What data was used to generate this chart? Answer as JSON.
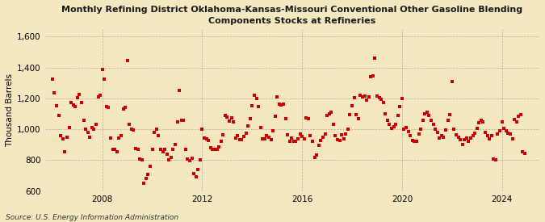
{
  "title": "Monthly Refining District Oklahoma-Kansas-Missouri Conventional Other Gasoline Blending\nComponents Stocks at Refineries",
  "ylabel": "Thousand Barrels",
  "source": "Source: U.S. Energy Information Administration",
  "background_color": "#f5e8c0",
  "plot_bg_color": "#f5e8c0",
  "marker_color": "#cc0000",
  "grid_color": "#b0a898",
  "xlim_start": 2005.7,
  "xlim_end": 2025.5,
  "ylim": [
    600,
    1650
  ],
  "yticks": [
    600,
    800,
    1000,
    1200,
    1400,
    1600
  ],
  "ytick_labels": [
    "600",
    "800",
    "1,000",
    "1,200",
    "1,400",
    "1,600"
  ],
  "xticks": [
    2008,
    2012,
    2016,
    2020,
    2024
  ],
  "data": [
    [
      2006.0,
      1325
    ],
    [
      2006.083,
      1235
    ],
    [
      2006.167,
      1155
    ],
    [
      2006.25,
      1090
    ],
    [
      2006.333,
      960
    ],
    [
      2006.417,
      940
    ],
    [
      2006.5,
      855
    ],
    [
      2006.583,
      950
    ],
    [
      2006.667,
      1010
    ],
    [
      2006.75,
      1175
    ],
    [
      2006.833,
      1160
    ],
    [
      2006.917,
      1150
    ],
    [
      2007.0,
      1205
    ],
    [
      2007.083,
      1225
    ],
    [
      2007.167,
      1175
    ],
    [
      2007.25,
      1060
    ],
    [
      2007.333,
      1000
    ],
    [
      2007.417,
      980
    ],
    [
      2007.5,
      950
    ],
    [
      2007.583,
      1010
    ],
    [
      2007.667,
      1000
    ],
    [
      2007.75,
      1030
    ],
    [
      2007.833,
      1210
    ],
    [
      2007.917,
      1220
    ],
    [
      2008.0,
      1390
    ],
    [
      2008.083,
      1325
    ],
    [
      2008.167,
      1145
    ],
    [
      2008.25,
      1140
    ],
    [
      2008.333,
      945
    ],
    [
      2008.417,
      870
    ],
    [
      2008.5,
      870
    ],
    [
      2008.583,
      855
    ],
    [
      2008.667,
      945
    ],
    [
      2008.75,
      960
    ],
    [
      2008.833,
      1130
    ],
    [
      2008.917,
      1140
    ],
    [
      2009.0,
      1445
    ],
    [
      2009.083,
      1035
    ],
    [
      2009.167,
      1000
    ],
    [
      2009.25,
      995
    ],
    [
      2009.333,
      875
    ],
    [
      2009.417,
      870
    ],
    [
      2009.5,
      805
    ],
    [
      2009.583,
      800
    ],
    [
      2009.667,
      650
    ],
    [
      2009.75,
      680
    ],
    [
      2009.833,
      710
    ],
    [
      2009.917,
      760
    ],
    [
      2010.0,
      870
    ],
    [
      2010.083,
      980
    ],
    [
      2010.167,
      1000
    ],
    [
      2010.25,
      960
    ],
    [
      2010.333,
      870
    ],
    [
      2010.417,
      855
    ],
    [
      2010.5,
      870
    ],
    [
      2010.583,
      840
    ],
    [
      2010.667,
      800
    ],
    [
      2010.75,
      820
    ],
    [
      2010.833,
      870
    ],
    [
      2010.917,
      900
    ],
    [
      2011.0,
      1050
    ],
    [
      2011.083,
      1250
    ],
    [
      2011.167,
      1060
    ],
    [
      2011.25,
      1060
    ],
    [
      2011.333,
      870
    ],
    [
      2011.417,
      810
    ],
    [
      2011.5,
      795
    ],
    [
      2011.583,
      815
    ],
    [
      2011.667,
      715
    ],
    [
      2011.75,
      690
    ],
    [
      2011.833,
      740
    ],
    [
      2011.917,
      800
    ],
    [
      2012.0,
      1000
    ],
    [
      2012.083,
      945
    ],
    [
      2012.167,
      940
    ],
    [
      2012.25,
      930
    ],
    [
      2012.333,
      880
    ],
    [
      2012.417,
      870
    ],
    [
      2012.5,
      870
    ],
    [
      2012.583,
      870
    ],
    [
      2012.667,
      885
    ],
    [
      2012.75,
      920
    ],
    [
      2012.833,
      965
    ],
    [
      2012.917,
      1090
    ],
    [
      2013.0,
      1080
    ],
    [
      2013.083,
      1055
    ],
    [
      2013.167,
      1075
    ],
    [
      2013.25,
      1050
    ],
    [
      2013.333,
      945
    ],
    [
      2013.417,
      960
    ],
    [
      2013.5,
      935
    ],
    [
      2013.583,
      935
    ],
    [
      2013.667,
      955
    ],
    [
      2013.75,
      975
    ],
    [
      2013.833,
      1020
    ],
    [
      2013.917,
      1070
    ],
    [
      2014.0,
      1155
    ],
    [
      2014.083,
      1220
    ],
    [
      2014.167,
      1200
    ],
    [
      2014.25,
      1150
    ],
    [
      2014.333,
      1010
    ],
    [
      2014.417,
      940
    ],
    [
      2014.5,
      940
    ],
    [
      2014.583,
      960
    ],
    [
      2014.667,
      950
    ],
    [
      2014.75,
      935
    ],
    [
      2014.833,
      990
    ],
    [
      2014.917,
      1085
    ],
    [
      2015.0,
      1210
    ],
    [
      2015.083,
      1165
    ],
    [
      2015.167,
      1160
    ],
    [
      2015.25,
      1165
    ],
    [
      2015.333,
      1070
    ],
    [
      2015.417,
      965
    ],
    [
      2015.5,
      920
    ],
    [
      2015.583,
      945
    ],
    [
      2015.667,
      920
    ],
    [
      2015.75,
      920
    ],
    [
      2015.833,
      940
    ],
    [
      2015.917,
      970
    ],
    [
      2016.0,
      955
    ],
    [
      2016.083,
      940
    ],
    [
      2016.167,
      1075
    ],
    [
      2016.25,
      1070
    ],
    [
      2016.333,
      960
    ],
    [
      2016.417,
      925
    ],
    [
      2016.5,
      820
    ],
    [
      2016.583,
      835
    ],
    [
      2016.667,
      895
    ],
    [
      2016.75,
      930
    ],
    [
      2016.833,
      950
    ],
    [
      2016.917,
      970
    ],
    [
      2017.0,
      1090
    ],
    [
      2017.083,
      1100
    ],
    [
      2017.167,
      1110
    ],
    [
      2017.25,
      1030
    ],
    [
      2017.333,
      960
    ],
    [
      2017.417,
      935
    ],
    [
      2017.5,
      930
    ],
    [
      2017.583,
      965
    ],
    [
      2017.667,
      940
    ],
    [
      2017.75,
      970
    ],
    [
      2017.833,
      1000
    ],
    [
      2017.917,
      1095
    ],
    [
      2018.0,
      1155
    ],
    [
      2018.083,
      1205
    ],
    [
      2018.167,
      1095
    ],
    [
      2018.25,
      1070
    ],
    [
      2018.333,
      1220
    ],
    [
      2018.417,
      1210
    ],
    [
      2018.5,
      1215
    ],
    [
      2018.583,
      1190
    ],
    [
      2018.667,
      1210
    ],
    [
      2018.75,
      1340
    ],
    [
      2018.833,
      1345
    ],
    [
      2018.917,
      1460
    ],
    [
      2019.0,
      1215
    ],
    [
      2019.083,
      1205
    ],
    [
      2019.167,
      1195
    ],
    [
      2019.25,
      1175
    ],
    [
      2019.333,
      1100
    ],
    [
      2019.417,
      1060
    ],
    [
      2019.5,
      1030
    ],
    [
      2019.583,
      1005
    ],
    [
      2019.667,
      1015
    ],
    [
      2019.75,
      1035
    ],
    [
      2019.833,
      1090
    ],
    [
      2019.917,
      1150
    ],
    [
      2020.0,
      1200
    ],
    [
      2020.083,
      1000
    ],
    [
      2020.167,
      1010
    ],
    [
      2020.25,
      985
    ],
    [
      2020.333,
      960
    ],
    [
      2020.417,
      930
    ],
    [
      2020.5,
      925
    ],
    [
      2020.583,
      920
    ],
    [
      2020.667,
      970
    ],
    [
      2020.75,
      1000
    ],
    [
      2020.833,
      1060
    ],
    [
      2020.917,
      1100
    ],
    [
      2021.0,
      1110
    ],
    [
      2021.083,
      1090
    ],
    [
      2021.167,
      1060
    ],
    [
      2021.25,
      1030
    ],
    [
      2021.333,
      1000
    ],
    [
      2021.417,
      980
    ],
    [
      2021.5,
      945
    ],
    [
      2021.583,
      960
    ],
    [
      2021.667,
      950
    ],
    [
      2021.75,
      995
    ],
    [
      2021.833,
      1060
    ],
    [
      2021.917,
      1095
    ],
    [
      2022.0,
      1310
    ],
    [
      2022.083,
      1000
    ],
    [
      2022.167,
      965
    ],
    [
      2022.25,
      950
    ],
    [
      2022.333,
      935
    ],
    [
      2022.417,
      900
    ],
    [
      2022.5,
      935
    ],
    [
      2022.583,
      945
    ],
    [
      2022.667,
      920
    ],
    [
      2022.75,
      945
    ],
    [
      2022.833,
      960
    ],
    [
      2022.917,
      975
    ],
    [
      2023.0,
      1005
    ],
    [
      2023.083,
      1045
    ],
    [
      2023.167,
      1060
    ],
    [
      2023.25,
      1050
    ],
    [
      2023.333,
      980
    ],
    [
      2023.417,
      960
    ],
    [
      2023.5,
      940
    ],
    [
      2023.583,
      960
    ],
    [
      2023.667,
      810
    ],
    [
      2023.75,
      800
    ],
    [
      2023.833,
      970
    ],
    [
      2023.917,
      990
    ],
    [
      2024.0,
      1050
    ],
    [
      2024.083,
      1005
    ],
    [
      2024.167,
      990
    ],
    [
      2024.25,
      975
    ],
    [
      2024.333,
      970
    ],
    [
      2024.417,
      940
    ],
    [
      2024.5,
      1065
    ],
    [
      2024.583,
      1050
    ],
    [
      2024.667,
      1085
    ],
    [
      2024.75,
      1095
    ],
    [
      2024.833,
      855
    ],
    [
      2024.917,
      845
    ]
  ]
}
